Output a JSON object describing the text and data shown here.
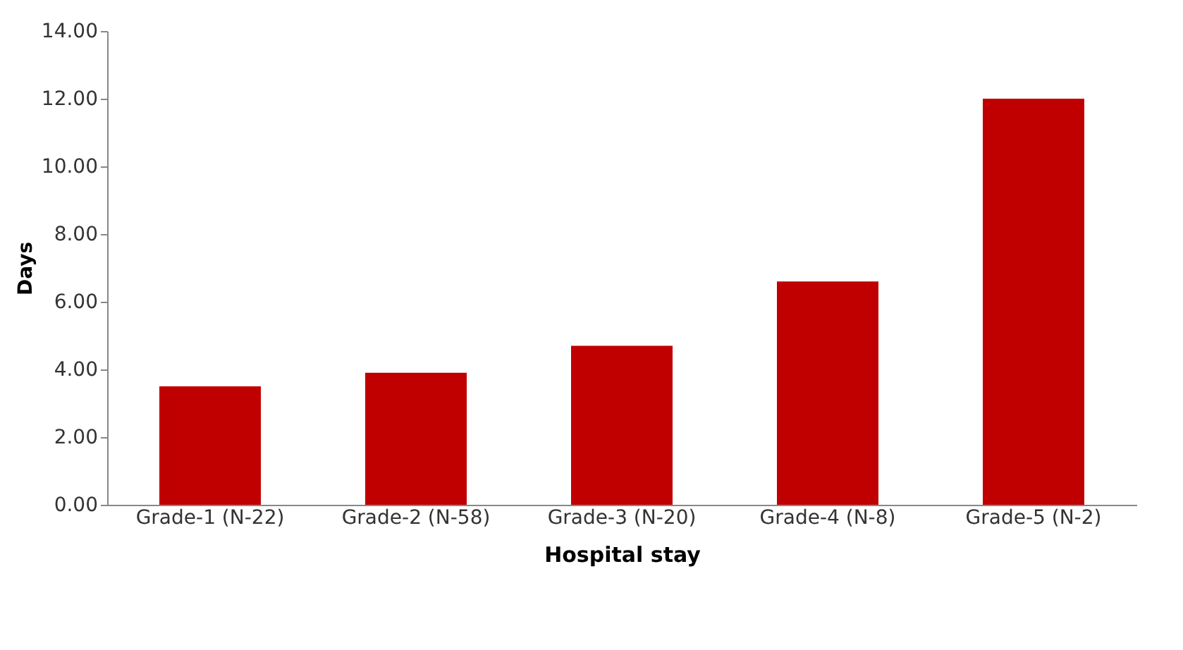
{
  "chart_data": {
    "type": "bar",
    "xlabel": "Hospital stay",
    "ylabel": "Days",
    "categories": [
      "Grade-1 (N-22)",
      "Grade-2 (N-58)",
      "Grade-3 (N-20)",
      "Grade-4 (N-8)",
      "Grade-5 (N-2)"
    ],
    "values": [
      3.5,
      3.9,
      4.7,
      6.6,
      12.0
    ],
    "color": "#c00000",
    "ylim": [
      0,
      14
    ],
    "yticks": [
      {
        "value": 0,
        "label": "0.00"
      },
      {
        "value": 2,
        "label": "2.00"
      },
      {
        "value": 4,
        "label": "4.00"
      },
      {
        "value": 6,
        "label": "6.00"
      },
      {
        "value": 8,
        "label": "8.00"
      },
      {
        "value": 10,
        "label": "10.00"
      },
      {
        "value": 12,
        "label": "12.00"
      },
      {
        "value": 14,
        "label": "14.00"
      }
    ],
    "grid": false
  }
}
